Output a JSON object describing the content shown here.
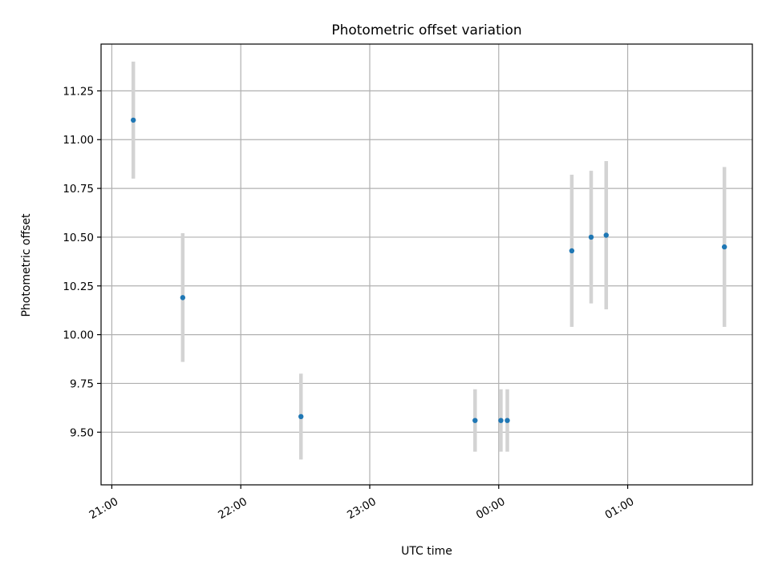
{
  "chart_data": {
    "type": "scatter",
    "title": "Photometric offset variation",
    "xlabel": "UTC time",
    "ylabel": "Photometric offset",
    "x_axis_kind": "time",
    "x_tick_values": [
      "21:00",
      "22:00",
      "23:00",
      "00:00",
      "01:00"
    ],
    "x_tick_labels": [
      "21:00",
      "22:00",
      "23:00",
      "00:00",
      "01:00"
    ],
    "y_ticks": [
      9.5,
      9.75,
      10.0,
      10.25,
      10.5,
      10.75,
      11.0,
      11.25
    ],
    "y_tick_labels": [
      "9.50",
      "9.75",
      "10.00",
      "10.25",
      "10.50",
      "10.75",
      "11.00",
      "11.25"
    ],
    "xlim": [
      "20:55",
      "01:58"
    ],
    "ylim": [
      9.23,
      11.49
    ],
    "grid": true,
    "legend": false,
    "colors": {
      "point": "#1f77b4",
      "errorbar": "#d3d3d3",
      "grid": "#b0b0b0"
    },
    "points": [
      {
        "x": "21:10",
        "y": 11.1,
        "err": 0.3
      },
      {
        "x": "21:33",
        "y": 10.19,
        "err": 0.33
      },
      {
        "x": "22:28",
        "y": 9.58,
        "err": 0.22
      },
      {
        "x": "23:49",
        "y": 9.56,
        "err": 0.16
      },
      {
        "x": "00:01",
        "y": 9.56,
        "err": 0.16
      },
      {
        "x": "00:04",
        "y": 9.56,
        "err": 0.16
      },
      {
        "x": "00:34",
        "y": 10.43,
        "err": 0.39
      },
      {
        "x": "00:43",
        "y": 10.5,
        "err": 0.34
      },
      {
        "x": "00:50",
        "y": 10.51,
        "err": 0.38
      },
      {
        "x": "01:45",
        "y": 10.45,
        "err": 0.41
      }
    ]
  }
}
